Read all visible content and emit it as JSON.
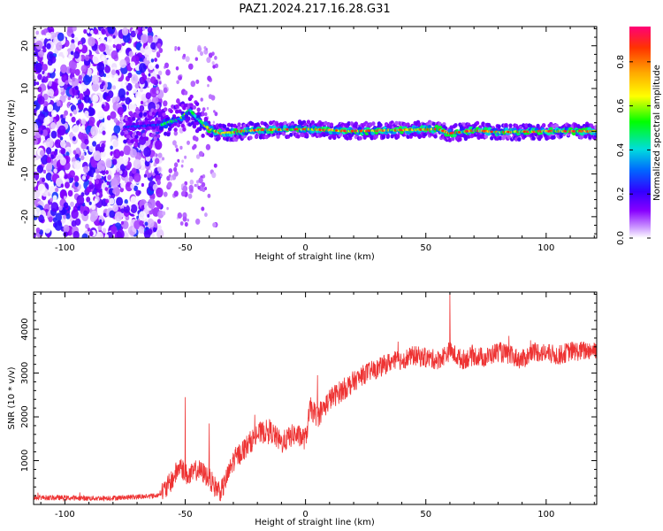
{
  "title": "PAZ1.2024.217.16.28.G31",
  "chart_data": [
    {
      "type": "heatmap",
      "xlabel": "Height of straight line (km)",
      "ylabel": "Frequency (Hz)",
      "xlim": [
        -113,
        121
      ],
      "ylim": [
        -25,
        24.5
      ],
      "xticks": [
        -100,
        -50,
        0,
        50,
        100
      ],
      "yticks": [
        -20,
        -10,
        0,
        10,
        20
      ],
      "colorbar": {
        "label": "Normalized spectral amplitude",
        "range": [
          0,
          0.96
        ],
        "ticks": [
          0.0,
          0.2,
          0.4,
          0.6,
          0.8
        ],
        "colormap": "purple-blue-cyan-green-yellow-orange-red-magenta",
        "stops": [
          "#ffffff",
          "#cc99ff",
          "#8800ff",
          "#3300ff",
          "#0066ff",
          "#00dddd",
          "#00ff00",
          "#ffff00",
          "#ffaa00",
          "#ff3300",
          "#ff0077"
        ]
      },
      "ridge": {
        "description_points_x": [
          -75,
          -60,
          -52,
          -48,
          -45,
          -40,
          -35,
          -20,
          0,
          20,
          40,
          55,
          60,
          70,
          80,
          100,
          121
        ],
        "description_points_y": [
          1,
          1.5,
          3,
          5,
          3,
          0.5,
          -0.5,
          0.3,
          0.5,
          0,
          0.3,
          0.5,
          -0.5,
          0.2,
          -0.2,
          0,
          0
        ]
      },
      "notes": "Diffuse noise for x < -60 km spread across all frequencies; concentrated signal near 0 Hz for x > -45 km with peak amplitudes (red) along the ridge."
    },
    {
      "type": "line",
      "xlabel": "Height of straight line (km)",
      "ylabel": "SNR (10 * v/v)",
      "xlim": [
        -113,
        121
      ],
      "ylim": [
        0,
        4850
      ],
      "xticks": [
        -100,
        -50,
        0,
        50,
        100
      ],
      "yticks": [
        1000,
        2000,
        3000,
        4000
      ],
      "line_color": "#ee3333",
      "series": [
        {
          "x": [
            -113,
            -100,
            -90,
            -80,
            -70,
            -62,
            -58,
            -55,
            -52,
            -50,
            -48,
            -45,
            -42,
            -40,
            -38,
            -35,
            -32,
            -30,
            -25,
            -20,
            -15,
            -10,
            -5,
            0,
            2,
            5,
            10,
            15,
            20,
            25,
            30,
            35,
            40,
            45,
            50,
            55,
            60,
            65,
            70,
            75,
            80,
            85,
            90,
            95,
            100,
            105,
            110,
            115,
            121
          ],
          "y": [
            160,
            150,
            140,
            150,
            170,
            200,
            350,
            600,
            900,
            700,
            650,
            800,
            700,
            600,
            420,
            300,
            700,
            1000,
            1300,
            1600,
            1700,
            1400,
            1600,
            1500,
            2200,
            2000,
            2400,
            2600,
            2800,
            3000,
            3100,
            3250,
            3300,
            3400,
            3350,
            3300,
            3500,
            3300,
            3400,
            3350,
            3500,
            3400,
            3300,
            3500,
            3450,
            3400,
            3500,
            3500,
            3550
          ]
        }
      ],
      "spikes": [
        {
          "x": -50,
          "y": 2450
        },
        {
          "x": -40,
          "y": 1850
        },
        {
          "x": 5,
          "y": 2950
        },
        {
          "x": 60,
          "y": 4820
        }
      ]
    }
  ]
}
